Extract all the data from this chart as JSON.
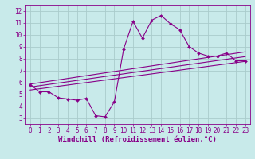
{
  "xlabel": "Windchill (Refroidissement éolien,°C)",
  "background_color": "#c8eaea",
  "grid_color": "#b0d0d0",
  "line_color": "#880088",
  "xlim": [
    -0.5,
    23.5
  ],
  "ylim": [
    2.5,
    12.5
  ],
  "xticks": [
    0,
    1,
    2,
    3,
    4,
    5,
    6,
    7,
    8,
    9,
    10,
    11,
    12,
    13,
    14,
    15,
    16,
    17,
    18,
    19,
    20,
    21,
    22,
    23
  ],
  "yticks": [
    3,
    4,
    5,
    6,
    7,
    8,
    9,
    10,
    11,
    12
  ],
  "data_x": [
    0,
    1,
    2,
    3,
    4,
    5,
    6,
    7,
    8,
    9,
    10,
    11,
    12,
    13,
    14,
    15,
    16,
    17,
    18,
    19,
    20,
    21,
    22,
    23
  ],
  "data_y": [
    5.8,
    5.2,
    5.2,
    4.7,
    4.6,
    4.5,
    4.65,
    3.2,
    3.1,
    4.35,
    8.8,
    11.1,
    9.7,
    11.2,
    11.6,
    10.9,
    10.4,
    9.0,
    8.45,
    8.2,
    8.2,
    8.45,
    7.8,
    7.8
  ],
  "reg_lines": [
    {
      "x0": 0,
      "y0": 5.85,
      "x1": 23,
      "y1": 8.55
    },
    {
      "x0": 0,
      "y0": 5.6,
      "x1": 23,
      "y1": 8.15
    },
    {
      "x0": 0,
      "y0": 5.35,
      "x1": 23,
      "y1": 7.75
    }
  ],
  "fontsize_tick": 5.5,
  "fontsize_label": 6.5
}
